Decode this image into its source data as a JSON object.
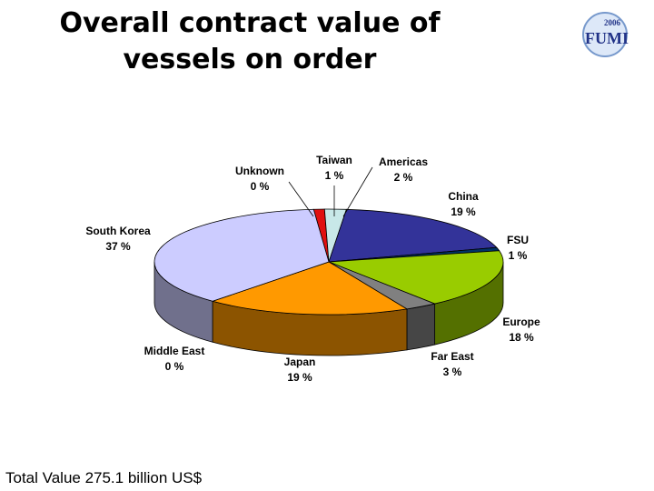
{
  "chart_data": {
    "type": "pie3d",
    "title": [
      "Overall contract value of",
      "vessels on order"
    ],
    "logo": {
      "year": "2006",
      "name": "FUMI"
    },
    "note": "Total Value 275.1 billion US$",
    "categories": [
      "Unknown",
      "Taiwan",
      "Americas",
      "China",
      "FSU",
      "Europe",
      "Far East",
      "Japan",
      "Middle East",
      "South Korea"
    ],
    "values": [
      0,
      1,
      2,
      19,
      1,
      18,
      3,
      19,
      0,
      37
    ],
    "value_labels": [
      "0 %",
      "1 %",
      "2 %",
      "19 %",
      "1 %",
      "18 %",
      "3 %",
      "19 %",
      "0 %",
      "37 %"
    ],
    "colors": [
      "#cc0000",
      "#e01010",
      "#c8e8e8",
      "#333399",
      "#003366",
      "#99cc00",
      "#808080",
      "#ff9900",
      "#003366",
      "#ccccff"
    ]
  }
}
